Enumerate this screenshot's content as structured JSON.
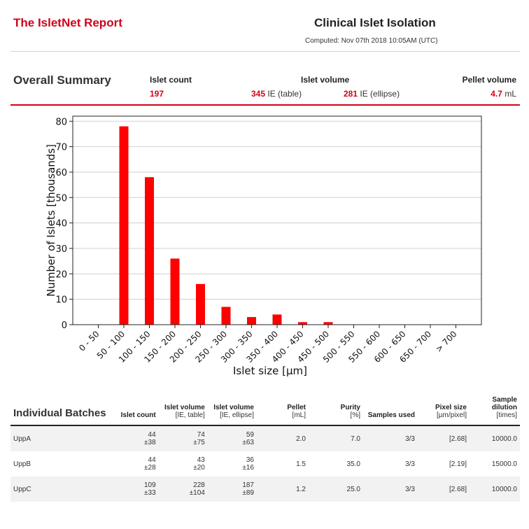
{
  "header": {
    "brand": "The IsletNet Report",
    "title": "Clinical Islet Isolation",
    "computed": "Computed: Nov 07th 2018 10:05AM (UTC)"
  },
  "summary": {
    "title": "Overall Summary",
    "islet_count_label": "Islet count",
    "islet_count_value": "197",
    "islet_volume_label": "Islet volume",
    "volume_table_value": "345",
    "volume_table_unit": "IE (table)",
    "volume_ellipse_value": "281",
    "volume_ellipse_unit": "IE (ellipse)",
    "pellet_label": "Pellet volume",
    "pellet_value": "4.7",
    "pellet_unit": "mL"
  },
  "chart_data": {
    "type": "bar",
    "categories": [
      "0 - 50",
      "50 - 100",
      "100 - 150",
      "150 - 200",
      "200 - 250",
      "250 - 300",
      "300 - 350",
      "350 - 400",
      "400 - 450",
      "450 - 500",
      "500 - 550",
      "550 - 600",
      "600 - 650",
      "650 - 700",
      "> 700"
    ],
    "values": [
      0,
      78,
      58,
      26,
      16,
      7,
      3,
      4,
      1,
      1,
      0,
      0,
      0,
      0,
      0
    ],
    "xlabel": "Islet size [µm]",
    "ylabel": "Number of Islets [thousands]",
    "ylim": [
      0,
      82
    ],
    "yticks": [
      0,
      10,
      20,
      30,
      40,
      50,
      60,
      70,
      80
    ],
    "bar_color": "#ff0000",
    "grid": true
  },
  "batches": {
    "title": "Individual Batches",
    "columns": [
      {
        "label": "Islet count",
        "unit": ""
      },
      {
        "label": "Islet volume",
        "unit": "[IE, table]"
      },
      {
        "label": "Islet volume",
        "unit": "[IE, ellipse]"
      },
      {
        "label": "Pellet",
        "unit": "[mL]"
      },
      {
        "label": "Purity",
        "unit": "[%]"
      },
      {
        "label": "Samples used",
        "unit": ""
      },
      {
        "label": "Pixel size",
        "unit": "[µm/pixel]"
      },
      {
        "label": "Sample dilution",
        "unit": "[times]"
      }
    ],
    "rows": [
      {
        "name": "UppA",
        "count": "44",
        "count_pm": "±38",
        "vol_table": "74",
        "vol_table_pm": "±75",
        "vol_ellipse": "59",
        "vol_ellipse_pm": "±63",
        "pellet": "2.0",
        "purity": "7.0",
        "samples": "3/3",
        "pixel": "[2.68]",
        "dilution": "10000.0"
      },
      {
        "name": "UppB",
        "count": "44",
        "count_pm": "±28",
        "vol_table": "43",
        "vol_table_pm": "±20",
        "vol_ellipse": "36",
        "vol_ellipse_pm": "±16",
        "pellet": "1.5",
        "purity": "35.0",
        "samples": "3/3",
        "pixel": "[2.19]",
        "dilution": "15000.0"
      },
      {
        "name": "UppC",
        "count": "109",
        "count_pm": "±33",
        "vol_table": "228",
        "vol_table_pm": "±104",
        "vol_ellipse": "187",
        "vol_ellipse_pm": "±89",
        "pellet": "1.2",
        "purity": "25.0",
        "samples": "3/3",
        "pixel": "[2.68]",
        "dilution": "10000.0"
      }
    ]
  }
}
